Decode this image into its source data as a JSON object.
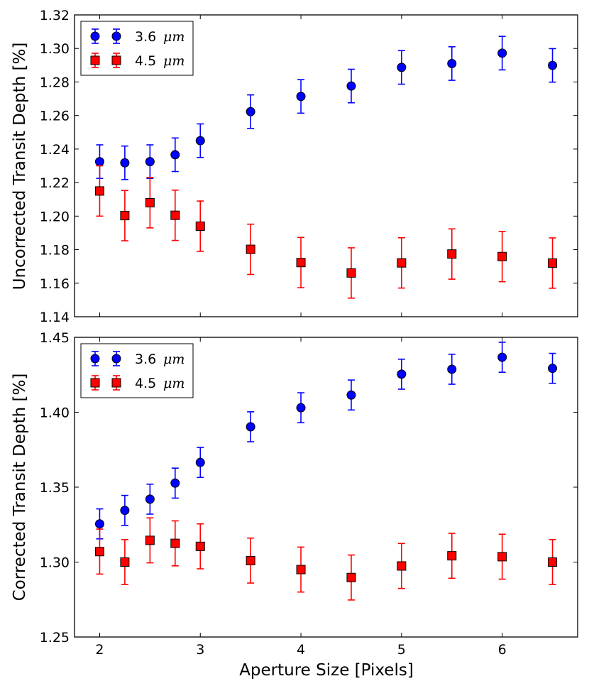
{
  "chart_data": [
    {
      "type": "scatter",
      "ylabel": "Uncorrected Transit Depth [%]",
      "xlabel": "",
      "xlim": [
        1.75,
        6.75
      ],
      "ylim": [
        1.14,
        1.32
      ],
      "x_ticks": [
        2,
        3,
        4,
        5,
        6
      ],
      "y_ticks": [
        1.14,
        1.16,
        1.18,
        1.2,
        1.22,
        1.24,
        1.26,
        1.28,
        1.3,
        1.32
      ],
      "y_tick_labels": [
        "1.14",
        "1.16",
        "1.18",
        "1.20",
        "1.22",
        "1.24",
        "1.26",
        "1.28",
        "1.30",
        "1.32"
      ],
      "legend_position": "top-left",
      "error_bars": true,
      "series": [
        {
          "name": "3.6",
          "unit": "μm",
          "color": "#0000ff",
          "marker": "circle",
          "x": [
            2,
            2.25,
            2.5,
            2.75,
            3,
            3.5,
            4,
            4.5,
            5,
            5.5,
            6,
            6.5
          ],
          "y": [
            1.2325,
            1.2318,
            1.2325,
            1.2366,
            1.245,
            1.2623,
            1.2714,
            1.2776,
            1.2887,
            1.291,
            1.2972,
            1.2899
          ],
          "err": [
            0.01,
            0.01,
            0.01,
            0.01,
            0.01,
            0.01,
            0.01,
            0.01,
            0.01,
            0.01,
            0.01,
            0.01
          ]
        },
        {
          "name": "4.5",
          "unit": "μm",
          "color": "#ff0000",
          "marker": "square",
          "x": [
            2,
            2.25,
            2.5,
            2.75,
            3,
            3.5,
            4,
            4.5,
            5,
            5.5,
            6,
            6.5
          ],
          "y": [
            1.215,
            1.2003,
            1.208,
            1.2005,
            1.194,
            1.1802,
            1.1723,
            1.1661,
            1.1721,
            1.1774,
            1.1759,
            1.172
          ],
          "err": [
            0.015,
            0.015,
            0.015,
            0.015,
            0.015,
            0.015,
            0.015,
            0.015,
            0.015,
            0.015,
            0.015,
            0.015
          ]
        }
      ]
    },
    {
      "type": "scatter",
      "ylabel": "Corrected Transit Depth [%]",
      "xlabel": "Aperture Size [Pixels]",
      "xlim": [
        1.75,
        6.75
      ],
      "ylim": [
        1.25,
        1.45
      ],
      "x_ticks": [
        2,
        3,
        4,
        5,
        6
      ],
      "x_tick_labels": [
        "2",
        "3",
        "4",
        "5",
        "6"
      ],
      "y_ticks": [
        1.25,
        1.3,
        1.35,
        1.4,
        1.45
      ],
      "y_tick_labels": [
        "1.25",
        "1.30",
        "1.35",
        "1.40",
        "1.45"
      ],
      "legend_position": "top-left",
      "error_bars": true,
      "series": [
        {
          "name": "3.6",
          "unit": "μm",
          "color": "#0000ff",
          "marker": "circle",
          "x": [
            2,
            2.25,
            2.5,
            2.75,
            3,
            3.5,
            4,
            4.5,
            5,
            5.5,
            6,
            6.5
          ],
          "y": [
            1.3255,
            1.3345,
            1.342,
            1.3527,
            1.3665,
            1.3903,
            1.403,
            1.4115,
            1.4254,
            1.4287,
            1.4367,
            1.4293
          ],
          "err": [
            0.01,
            0.01,
            0.01,
            0.01,
            0.01,
            0.01,
            0.01,
            0.01,
            0.01,
            0.01,
            0.01,
            0.01
          ]
        },
        {
          "name": "4.5",
          "unit": "μm",
          "color": "#ff0000",
          "marker": "square",
          "x": [
            2,
            2.25,
            2.5,
            2.75,
            3,
            3.5,
            4,
            4.5,
            5,
            5.5,
            6,
            6.5
          ],
          "y": [
            1.307,
            1.3,
            1.3145,
            1.3125,
            1.3105,
            1.301,
            1.295,
            1.2897,
            1.2974,
            1.3042,
            1.3036,
            1.3
          ],
          "err": [
            0.015,
            0.015,
            0.015,
            0.015,
            0.015,
            0.015,
            0.015,
            0.015,
            0.015,
            0.015,
            0.015,
            0.015
          ]
        }
      ]
    }
  ]
}
